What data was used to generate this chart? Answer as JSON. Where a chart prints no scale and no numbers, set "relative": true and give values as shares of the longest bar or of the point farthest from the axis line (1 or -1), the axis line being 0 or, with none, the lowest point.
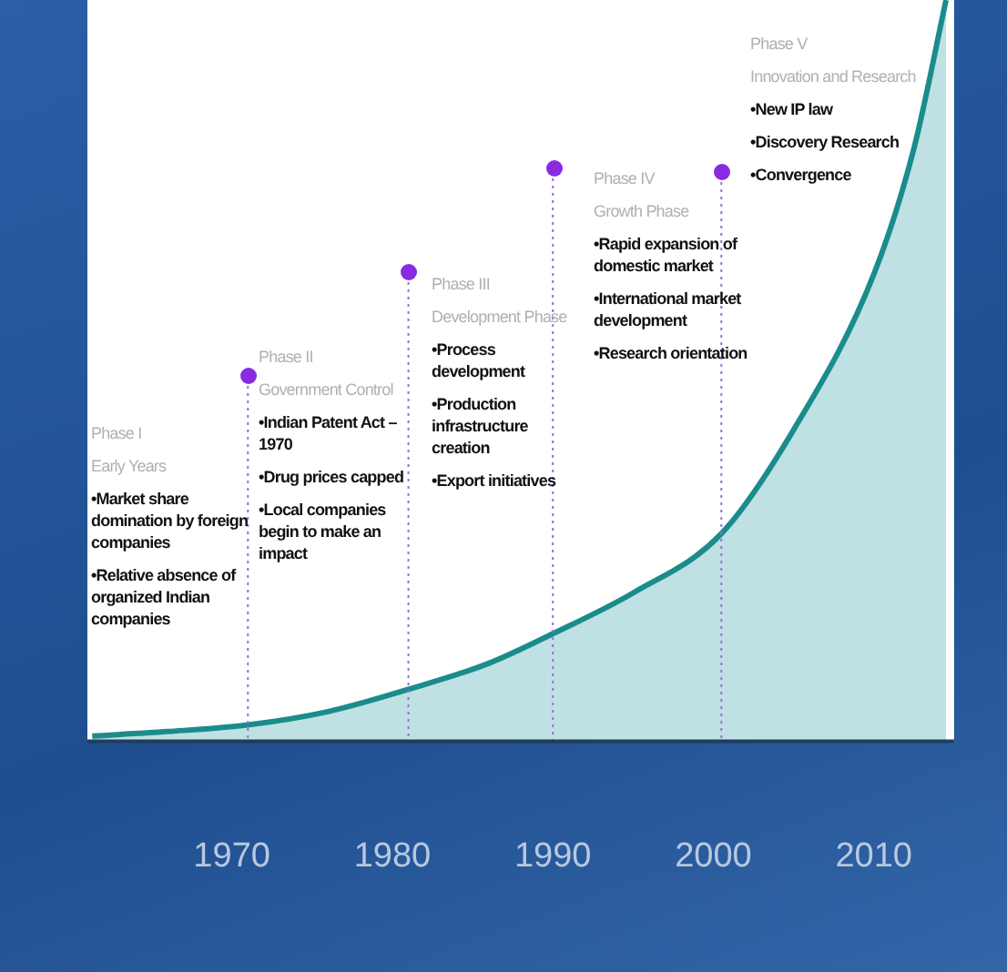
{
  "chart_data": {
    "type": "area",
    "relative": true,
    "x": [
      1961.3,
      1966,
      1971,
      1976,
      1981,
      1986,
      1990,
      1995,
      2000.5,
      2005,
      2010,
      2012.5,
      2014.5
    ],
    "series": [
      {
        "color": "#1b8c8c",
        "values": [
          0.007,
          0.013,
          0.022,
          0.04,
          0.07,
          0.105,
          0.145,
          0.2,
          0.28,
          0.42,
          0.63,
          0.8,
          1
        ]
      }
    ],
    "xlim": [
      1961,
      2015
    ],
    "xticks": [
      1970,
      1980,
      1990,
      2000,
      2010
    ],
    "grid": false,
    "legend": false,
    "ref_lines": [
      {
        "axis": "x",
        "value": 1971,
        "color": "#9b6fd6",
        "line_style": "dotted"
      },
      {
        "axis": "x",
        "value": 1981,
        "color": "#9b6fd6",
        "line_style": "dotted"
      },
      {
        "axis": "x",
        "value": 1990,
        "color": "#9b6fd6",
        "line_style": "dotted"
      },
      {
        "axis": "x",
        "value": 2000.5,
        "color": "#9b6fd6",
        "line_style": "dotted"
      }
    ],
    "annotations": [
      "Phase I\nEarly Years\n•Market share domination by foreign companies\n•Relative absence of organized Indian companies",
      "Phase II\nGovernment Control\n•Indian Patent Act – 1970\n•Drug prices capped\n•Local companies begin to make an impact",
      "Phase III\nDevelopment Phase\n•Process development\n•Production infrastructure creation\n•Export initiatives",
      "Phase IV\nGrowth Phase\n•Rapid expansion of domestic market\n•International market development\n•Research orientation",
      "Phase V\nInnovation and Research\n•New IP law\n•Discovery Research\n•Convergence"
    ]
  }
}
